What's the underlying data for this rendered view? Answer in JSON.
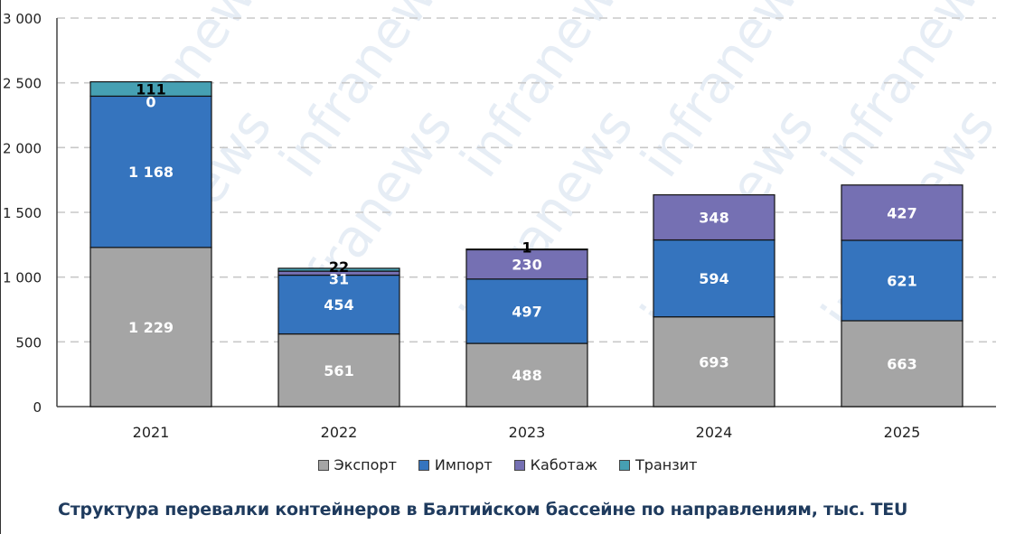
{
  "chart_data": {
    "type": "bar",
    "stacked": true,
    "title": "Структура перевалки контейнеров в Балтийском бассейне по направлениям, тыс. TEU",
    "xlabel": "",
    "ylabel": "",
    "ylim": [
      0,
      3000
    ],
    "yticks": [
      0,
      500,
      1000,
      1500,
      2000,
      2500,
      3000
    ],
    "ytick_labels": [
      "0",
      "500",
      "1 000",
      "1 500",
      "2 000",
      "2 500",
      "3 000"
    ],
    "grid": true,
    "legend_position": "bottom",
    "categories": [
      "2021",
      "2022",
      "2023",
      "2024",
      "2025"
    ],
    "series": [
      {
        "name": "Экспорт",
        "color": "#a5a5a5",
        "values": [
          1229,
          561,
          488,
          693,
          663
        ],
        "labels": [
          "1 229",
          "561",
          "488",
          "693",
          "663"
        ]
      },
      {
        "name": "Импорт",
        "color": "#3574be",
        "values": [
          1168,
          454,
          497,
          594,
          621
        ],
        "labels": [
          "1 168",
          "454",
          "497",
          "594",
          "621"
        ]
      },
      {
        "name": "Каботаж",
        "color": "#7570b3",
        "values": [
          0,
          31,
          230,
          348,
          427
        ],
        "labels": [
          "0",
          "31",
          "230",
          "348",
          "427"
        ]
      },
      {
        "name": "Транзит",
        "color": "#46a0b3",
        "values": [
          111,
          22,
          1,
          0,
          0
        ],
        "labels": [
          "111",
          "22",
          "1",
          "",
          ""
        ]
      }
    ]
  },
  "legend": {
    "items": [
      {
        "label": "Экспорт",
        "color": "#a5a5a5"
      },
      {
        "label": "Импорт",
        "color": "#3574be"
      },
      {
        "label": "Каботаж",
        "color": "#7570b3"
      },
      {
        "label": "Транзит",
        "color": "#46a0b3"
      }
    ]
  },
  "caption": "Структура перевалки контейнеров в Балтийском бассейне по направлениям, тыс. TEU",
  "watermark": "infranews"
}
